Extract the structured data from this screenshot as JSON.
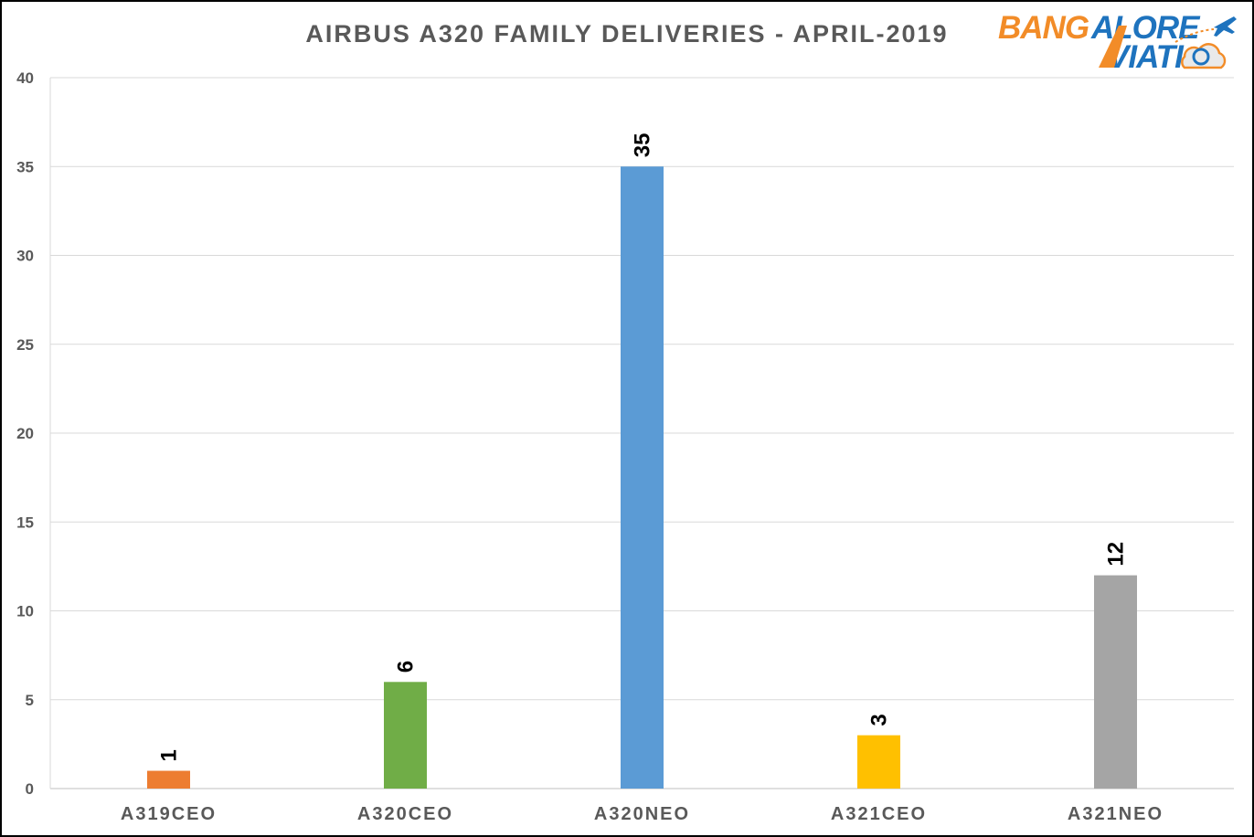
{
  "chart_data": {
    "type": "bar",
    "title": "AIRBUS  A320  FAMILY  DELIVERIES  - APRIL-2019",
    "categories": [
      "A319CEO",
      "A320CEO",
      "A320NEO",
      "A321CEO",
      "A321NEO"
    ],
    "values": [
      1,
      6,
      35,
      3,
      12
    ],
    "colors": [
      "#ED7D31",
      "#70AD47",
      "#5B9BD5",
      "#FFC000",
      "#A5A5A5"
    ],
    "ylim": [
      0,
      40
    ],
    "yticks": [
      0,
      5,
      10,
      15,
      20,
      25,
      30,
      35,
      40
    ],
    "xlabel": "",
    "ylabel": "",
    "grid": true,
    "data_labels": "rotated-above-bar"
  },
  "logo": {
    "line1": "BANGALORE",
    "line2": "AVIATION",
    "colors": {
      "orange": "#F28C28",
      "blue": "#1E73BE"
    }
  }
}
